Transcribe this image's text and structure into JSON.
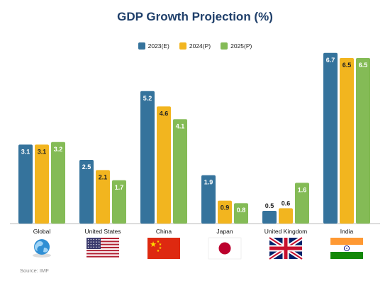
{
  "chart_data": {
    "type": "bar",
    "title": "GDP Growth Projection (%)",
    "categories": [
      "Global",
      "United States",
      "China",
      "Japan",
      "United Kingdom",
      "India"
    ],
    "series": [
      {
        "name": "2023(E)",
        "color": "#35739c",
        "values": [
          3.1,
          2.5,
          5.2,
          1.9,
          0.5,
          6.7
        ]
      },
      {
        "name": "2024(P)",
        "color": "#f2b51f",
        "values": [
          3.1,
          2.1,
          4.6,
          0.9,
          0.6,
          6.5
        ]
      },
      {
        "name": "2025(P)",
        "color": "#84bb56",
        "values": [
          3.2,
          1.7,
          4.1,
          0.8,
          1.6,
          6.5
        ]
      }
    ],
    "ylim": [
      0,
      7
    ],
    "grid": false,
    "legend_position": "top-center",
    "xlabel": "",
    "ylabel": ""
  },
  "icons": [
    "globe-icon",
    "us-flag-icon",
    "china-flag-icon",
    "japan-flag-icon",
    "uk-flag-icon",
    "india-flag-icon"
  ],
  "source": "Source: IMF"
}
